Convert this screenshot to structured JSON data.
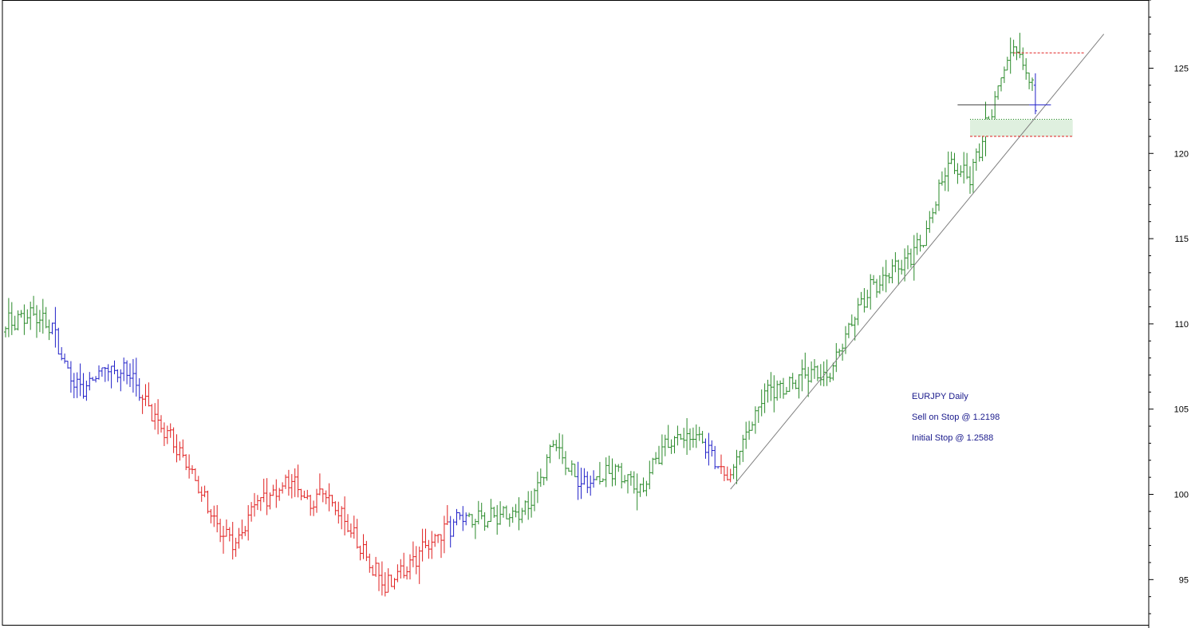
{
  "chart_data": {
    "type": "ohlc",
    "instrument": "EURJPY Daily",
    "annotations": [
      "EURJPY Daily",
      "Sell on Stop @ 1.2198",
      "Initial Stop @ 1.2588"
    ],
    "y_ticks": [
      95,
      100,
      105,
      110,
      115,
      120,
      125
    ],
    "ylim": [
      92.3,
      129
    ],
    "grid": false,
    "bar_colors": {
      "uptrend": "#2a8a2a",
      "downtrend": "#e02020",
      "neutral": "#2020c8"
    },
    "phases": [
      {
        "color": "green",
        "from_bar": 0,
        "to_bar": 14
      },
      {
        "color": "blue",
        "from_bar": 15,
        "to_bar": 43
      },
      {
        "color": "red",
        "from_bar": 44,
        "to_bar": 142
      },
      {
        "color": "blue",
        "from_bar": 143,
        "to_bar": 148
      },
      {
        "color": "green",
        "from_bar": 149,
        "to_bar": 183
      },
      {
        "color": "blue",
        "from_bar": 184,
        "to_bar": 189
      },
      {
        "color": "green",
        "from_bar": 190,
        "to_bar": 224
      },
      {
        "color": "blue",
        "from_bar": 225,
        "to_bar": 229
      },
      {
        "color": "red",
        "from_bar": 230,
        "to_bar": 233
      },
      {
        "color": "green",
        "from_bar": 234,
        "to_bar": 330
      },
      {
        "color": "blue",
        "from_bar": 331,
        "to_bar": 331
      }
    ],
    "path_anchors": [
      [
        0,
        110.0
      ],
      [
        8,
        110.5
      ],
      [
        15,
        109.8
      ],
      [
        20,
        107.0
      ],
      [
        25,
        106.0
      ],
      [
        32,
        107.5
      ],
      [
        40,
        107.0
      ],
      [
        48,
        104.5
      ],
      [
        58,
        102.0
      ],
      [
        68,
        98.0
      ],
      [
        74,
        97.0
      ],
      [
        80,
        99.5
      ],
      [
        88,
        100.3
      ],
      [
        92,
        101.0
      ],
      [
        98,
        99.0
      ],
      [
        102,
        100.5
      ],
      [
        112,
        97.5
      ],
      [
        122,
        94.5
      ],
      [
        130,
        96.0
      ],
      [
        138,
        97.5
      ],
      [
        146,
        98.5
      ],
      [
        155,
        98.6
      ],
      [
        168,
        99.0
      ],
      [
        176,
        103.0
      ],
      [
        185,
        100.5
      ],
      [
        196,
        101.5
      ],
      [
        204,
        100.0
      ],
      [
        212,
        103.2
      ],
      [
        222,
        103.5
      ],
      [
        228,
        102.0
      ],
      [
        233,
        100.8
      ],
      [
        236,
        102.8
      ],
      [
        244,
        106.0
      ],
      [
        258,
        107.0
      ],
      [
        264,
        106.8
      ],
      [
        272,
        110.0
      ],
      [
        278,
        112.0
      ],
      [
        288,
        113.5
      ],
      [
        295,
        114.8
      ],
      [
        303,
        119.5
      ],
      [
        310,
        118.5
      ],
      [
        315,
        121.5
      ],
      [
        320,
        124.5
      ],
      [
        324,
        126.3
      ],
      [
        328,
        125.0
      ],
      [
        331,
        123.2
      ]
    ],
    "trendline": {
      "from": [
        233,
        100.3
      ],
      "to": [
        353,
        127.0
      ],
      "color": "#808080"
    },
    "levels": [
      {
        "label": "Initial Stop",
        "value": 125.9,
        "from_bar": 324,
        "to_bar": 347,
        "style": "dashed",
        "color": "#e02020"
      },
      {
        "label": "Breakdown level",
        "value": 122.85,
        "from_bar": 306,
        "to_bar": 329,
        "style": "solid",
        "color": "#404040"
      },
      {
        "label": "Signal bar level",
        "value": 122.85,
        "from_bar": 329,
        "to_bar": 336,
        "style": "solid",
        "color": "#2020c8"
      },
      {
        "label": "Target",
        "value": 121.0,
        "from_bar": 310,
        "to_bar": 343,
        "style": "dashed",
        "color": "#e02020"
      }
    ],
    "target_zone": {
      "top": 122.0,
      "bottom": 121.0,
      "from_bar": 310,
      "to_bar": 343,
      "fill": "#dff0df",
      "border": "#2a8a2a"
    },
    "last_bar": {
      "open": 124.0,
      "high": 124.7,
      "low": 122.3,
      "close": 122.5
    }
  }
}
